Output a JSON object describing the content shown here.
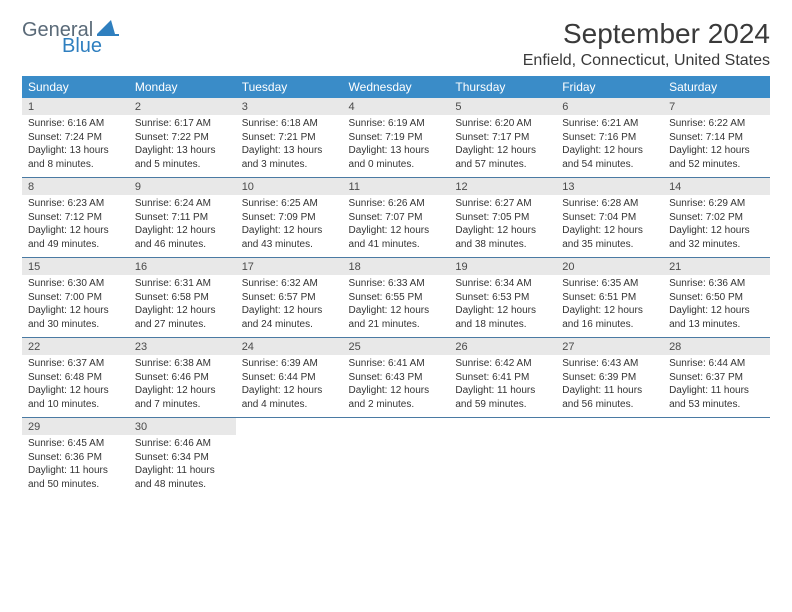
{
  "brand": {
    "part1": "General",
    "part2": "Blue"
  },
  "title": {
    "monthYear": "September 2024",
    "location": "Enfield, Connecticut, United States"
  },
  "colors": {
    "headerBlue": "#3a8cc8",
    "rowGray": "#e8e8e8",
    "sepBlue": "#4a7aa3"
  },
  "weekdays": [
    "Sunday",
    "Monday",
    "Tuesday",
    "Wednesday",
    "Thursday",
    "Friday",
    "Saturday"
  ],
  "weeks": [
    [
      {
        "n": "1",
        "sr": "Sunrise: 6:16 AM",
        "ss": "Sunset: 7:24 PM",
        "dl": "Daylight: 13 hours and 8 minutes."
      },
      {
        "n": "2",
        "sr": "Sunrise: 6:17 AM",
        "ss": "Sunset: 7:22 PM",
        "dl": "Daylight: 13 hours and 5 minutes."
      },
      {
        "n": "3",
        "sr": "Sunrise: 6:18 AM",
        "ss": "Sunset: 7:21 PM",
        "dl": "Daylight: 13 hours and 3 minutes."
      },
      {
        "n": "4",
        "sr": "Sunrise: 6:19 AM",
        "ss": "Sunset: 7:19 PM",
        "dl": "Daylight: 13 hours and 0 minutes."
      },
      {
        "n": "5",
        "sr": "Sunrise: 6:20 AM",
        "ss": "Sunset: 7:17 PM",
        "dl": "Daylight: 12 hours and 57 minutes."
      },
      {
        "n": "6",
        "sr": "Sunrise: 6:21 AM",
        "ss": "Sunset: 7:16 PM",
        "dl": "Daylight: 12 hours and 54 minutes."
      },
      {
        "n": "7",
        "sr": "Sunrise: 6:22 AM",
        "ss": "Sunset: 7:14 PM",
        "dl": "Daylight: 12 hours and 52 minutes."
      }
    ],
    [
      {
        "n": "8",
        "sr": "Sunrise: 6:23 AM",
        "ss": "Sunset: 7:12 PM",
        "dl": "Daylight: 12 hours and 49 minutes."
      },
      {
        "n": "9",
        "sr": "Sunrise: 6:24 AM",
        "ss": "Sunset: 7:11 PM",
        "dl": "Daylight: 12 hours and 46 minutes."
      },
      {
        "n": "10",
        "sr": "Sunrise: 6:25 AM",
        "ss": "Sunset: 7:09 PM",
        "dl": "Daylight: 12 hours and 43 minutes."
      },
      {
        "n": "11",
        "sr": "Sunrise: 6:26 AM",
        "ss": "Sunset: 7:07 PM",
        "dl": "Daylight: 12 hours and 41 minutes."
      },
      {
        "n": "12",
        "sr": "Sunrise: 6:27 AM",
        "ss": "Sunset: 7:05 PM",
        "dl": "Daylight: 12 hours and 38 minutes."
      },
      {
        "n": "13",
        "sr": "Sunrise: 6:28 AM",
        "ss": "Sunset: 7:04 PM",
        "dl": "Daylight: 12 hours and 35 minutes."
      },
      {
        "n": "14",
        "sr": "Sunrise: 6:29 AM",
        "ss": "Sunset: 7:02 PM",
        "dl": "Daylight: 12 hours and 32 minutes."
      }
    ],
    [
      {
        "n": "15",
        "sr": "Sunrise: 6:30 AM",
        "ss": "Sunset: 7:00 PM",
        "dl": "Daylight: 12 hours and 30 minutes."
      },
      {
        "n": "16",
        "sr": "Sunrise: 6:31 AM",
        "ss": "Sunset: 6:58 PM",
        "dl": "Daylight: 12 hours and 27 minutes."
      },
      {
        "n": "17",
        "sr": "Sunrise: 6:32 AM",
        "ss": "Sunset: 6:57 PM",
        "dl": "Daylight: 12 hours and 24 minutes."
      },
      {
        "n": "18",
        "sr": "Sunrise: 6:33 AM",
        "ss": "Sunset: 6:55 PM",
        "dl": "Daylight: 12 hours and 21 minutes."
      },
      {
        "n": "19",
        "sr": "Sunrise: 6:34 AM",
        "ss": "Sunset: 6:53 PM",
        "dl": "Daylight: 12 hours and 18 minutes."
      },
      {
        "n": "20",
        "sr": "Sunrise: 6:35 AM",
        "ss": "Sunset: 6:51 PM",
        "dl": "Daylight: 12 hours and 16 minutes."
      },
      {
        "n": "21",
        "sr": "Sunrise: 6:36 AM",
        "ss": "Sunset: 6:50 PM",
        "dl": "Daylight: 12 hours and 13 minutes."
      }
    ],
    [
      {
        "n": "22",
        "sr": "Sunrise: 6:37 AM",
        "ss": "Sunset: 6:48 PM",
        "dl": "Daylight: 12 hours and 10 minutes."
      },
      {
        "n": "23",
        "sr": "Sunrise: 6:38 AM",
        "ss": "Sunset: 6:46 PM",
        "dl": "Daylight: 12 hours and 7 minutes."
      },
      {
        "n": "24",
        "sr": "Sunrise: 6:39 AM",
        "ss": "Sunset: 6:44 PM",
        "dl": "Daylight: 12 hours and 4 minutes."
      },
      {
        "n": "25",
        "sr": "Sunrise: 6:41 AM",
        "ss": "Sunset: 6:43 PM",
        "dl": "Daylight: 12 hours and 2 minutes."
      },
      {
        "n": "26",
        "sr": "Sunrise: 6:42 AM",
        "ss": "Sunset: 6:41 PM",
        "dl": "Daylight: 11 hours and 59 minutes."
      },
      {
        "n": "27",
        "sr": "Sunrise: 6:43 AM",
        "ss": "Sunset: 6:39 PM",
        "dl": "Daylight: 11 hours and 56 minutes."
      },
      {
        "n": "28",
        "sr": "Sunrise: 6:44 AM",
        "ss": "Sunset: 6:37 PM",
        "dl": "Daylight: 11 hours and 53 minutes."
      }
    ],
    [
      {
        "n": "29",
        "sr": "Sunrise: 6:45 AM",
        "ss": "Sunset: 6:36 PM",
        "dl": "Daylight: 11 hours and 50 minutes."
      },
      {
        "n": "30",
        "sr": "Sunrise: 6:46 AM",
        "ss": "Sunset: 6:34 PM",
        "dl": "Daylight: 11 hours and 48 minutes."
      },
      null,
      null,
      null,
      null,
      null
    ]
  ]
}
